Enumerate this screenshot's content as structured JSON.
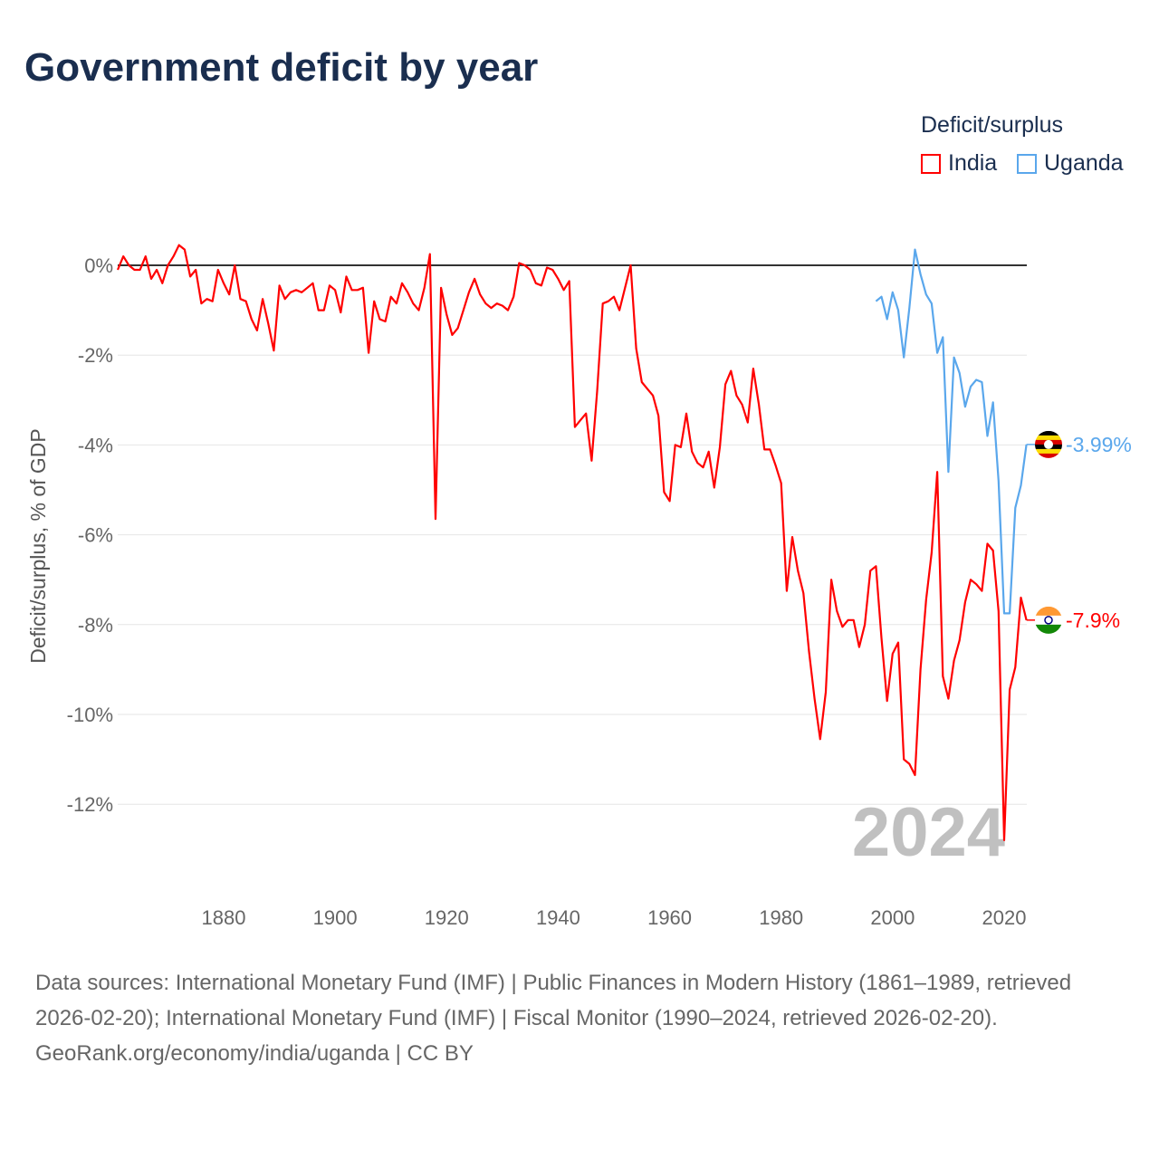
{
  "title": "Government deficit by year",
  "legend": {
    "title": "Deficit/surplus",
    "items": [
      {
        "label": "India",
        "color": "#ff0000"
      },
      {
        "label": "Uganda",
        "color": "#5aa7ec"
      }
    ]
  },
  "footer": {
    "sources": "Data sources: International Monetary Fund (IMF) | Public Finances in Modern History (1861–1989, retrieved 2026-02-20); International Monetary Fund (IMF) | Fiscal Monitor (1990–2024, retrieved 2026-02-20).",
    "credit": "GeoRank.org/economy/india/uganda | CC BY"
  },
  "chart_data": {
    "type": "line",
    "title": "Government deficit by year",
    "xlabel": "",
    "ylabel": "Deficit/surplus, % of GDP",
    "xlim": [
      1861,
      2024
    ],
    "ylim": [
      -13,
      0.5
    ],
    "xticks": [
      1880,
      1900,
      1920,
      1940,
      1960,
      1980,
      2000,
      2020
    ],
    "yticks": [
      0,
      -2,
      -4,
      -6,
      -8,
      -10,
      -12
    ],
    "ytick_labels": [
      "0%",
      "-2%",
      "-4%",
      "-6%",
      "-8%",
      "-10%",
      "-12%"
    ],
    "year_watermark": "2024",
    "series": [
      {
        "name": "India",
        "color": "#ff0000",
        "start_year": 1861,
        "end_label": "-7.9%",
        "values": [
          -0.1,
          0.2,
          0.0,
          -0.1,
          -0.1,
          0.2,
          -0.3,
          -0.1,
          -0.4,
          0.0,
          0.2,
          0.45,
          0.35,
          -0.25,
          -0.1,
          -0.85,
          -0.75,
          -0.8,
          -0.1,
          -0.4,
          -0.65,
          0.0,
          -0.75,
          -0.8,
          -1.2,
          -1.45,
          -0.75,
          -1.3,
          -1.9,
          -0.45,
          -0.75,
          -0.6,
          -0.55,
          -0.6,
          -0.5,
          -0.4,
          -1.0,
          -1.0,
          -0.45,
          -0.55,
          -1.05,
          -0.25,
          -0.55,
          -0.55,
          -0.5,
          -1.95,
          -0.8,
          -1.2,
          -1.25,
          -0.7,
          -0.85,
          -0.4,
          -0.6,
          -0.85,
          -1.0,
          -0.5,
          0.25,
          -5.65,
          -0.5,
          -1.1,
          -1.55,
          -1.4,
          -1.0,
          -0.6,
          -0.3,
          -0.65,
          -0.85,
          -0.95,
          -0.85,
          -0.9,
          -1.0,
          -0.7,
          0.05,
          0.0,
          -0.1,
          -0.4,
          -0.45,
          -0.05,
          -0.1,
          -0.3,
          -0.55,
          -0.35,
          -3.6,
          -3.45,
          -3.3,
          -4.35,
          -2.8,
          -0.85,
          -0.8,
          -0.7,
          -1.0,
          -0.5,
          0.0,
          -1.85,
          -2.6,
          -2.75,
          -2.9,
          -3.35,
          -5.05,
          -5.25,
          -4.0,
          -4.05,
          -3.3,
          -4.15,
          -4.4,
          -4.5,
          -4.15,
          -4.95,
          -4.05,
          -2.65,
          -2.35,
          -2.9,
          -3.1,
          -3.5,
          -2.3,
          -3.1,
          -4.1,
          -4.1,
          -4.45,
          -4.85,
          -7.25,
          -6.05,
          -6.8,
          -7.3,
          -8.6,
          -9.65,
          -10.55,
          -9.5,
          -7.0,
          -7.7,
          -8.05,
          -7.9,
          -7.9,
          -8.5,
          -8.0,
          -6.8,
          -6.7,
          -8.3,
          -9.7,
          -8.65,
          -8.4,
          -11.0,
          -11.1,
          -11.35,
          -9.0,
          -7.45,
          -6.4,
          -4.6,
          -9.15,
          -9.65,
          -8.8,
          -8.35,
          -7.5,
          -7.0,
          -7.1,
          -7.25,
          -6.2,
          -6.35,
          -7.7,
          -12.8,
          -9.45,
          -8.95,
          -7.4,
          -7.9
        ]
      },
      {
        "name": "Uganda",
        "color": "#5aa7ec",
        "start_year": 1997,
        "end_label": "-3.99%",
        "values": [
          -0.8,
          -0.7,
          -1.2,
          -0.6,
          -1.0,
          -2.05,
          -0.95,
          0.35,
          -0.2,
          -0.65,
          -0.85,
          -1.95,
          -1.6,
          -4.6,
          -2.05,
          -2.4,
          -3.15,
          -2.7,
          -2.55,
          -2.6,
          -3.8,
          -3.05,
          -4.8,
          -7.75,
          -7.75,
          -5.4,
          -4.9,
          -3.99
        ]
      }
    ]
  }
}
